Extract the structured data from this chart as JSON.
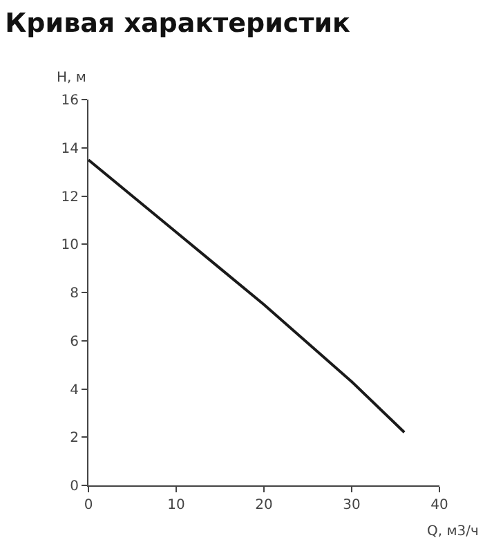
{
  "chart_data": {
    "type": "line",
    "title": "Кривая характеристик",
    "xlabel": "Q, м3/ч",
    "ylabel": "H, м",
    "x": [
      0,
      5,
      10,
      15,
      20,
      25,
      30,
      36
    ],
    "series": [
      {
        "color": "#1a1a1a",
        "values": [
          13.5,
          12.0,
          10.5,
          9.0,
          7.5,
          5.9,
          4.3,
          2.2
        ]
      }
    ],
    "xlim": [
      0,
      40
    ],
    "xticks": [
      0,
      10,
      20,
      30,
      40
    ],
    "ylim": [
      0,
      16
    ],
    "yticks": [
      0,
      2,
      4,
      6,
      8,
      10,
      12,
      14,
      16
    ],
    "marker": "none",
    "line_style": "solid"
  }
}
